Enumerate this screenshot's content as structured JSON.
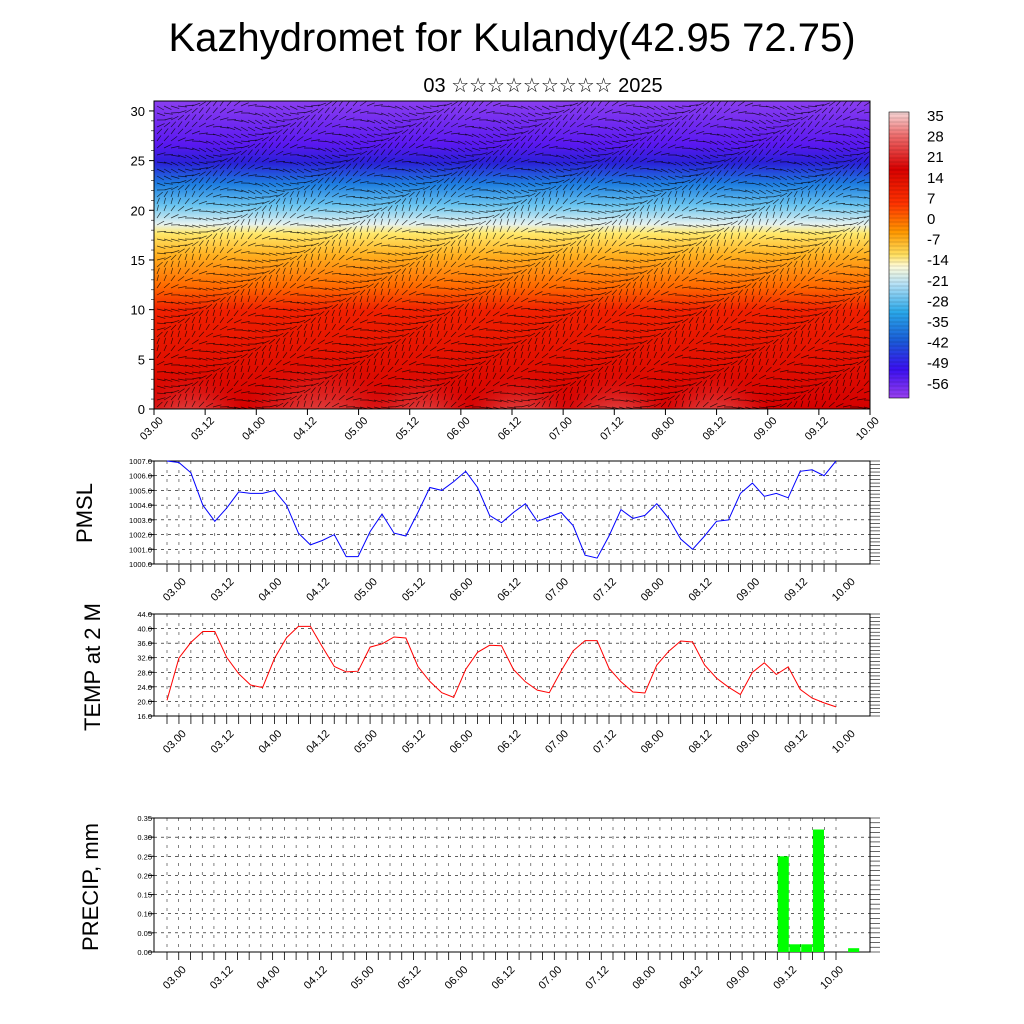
{
  "title": "Kazhydromet for Kulandy(42.95 72.75)",
  "subtitle": "03 ☆☆☆☆☆☆☆☆☆ 2025",
  "time_labels": [
    "03.00",
    "03.12",
    "04.00",
    "04.12",
    "05.00",
    "05.12",
    "06.00",
    "06.12",
    "07.00",
    "07.12",
    "08.00",
    "08.12",
    "09.00",
    "09.12",
    "10.00"
  ],
  "colors": {
    "pmsl": "#0000ff",
    "temp": "#ff0000",
    "precip": "#00ff00"
  },
  "chart_data": [
    {
      "type": "heatmap",
      "description_series": "temperature cross-section with wind barbs",
      "y_ticks": [
        "0",
        "5",
        "10",
        "15",
        "20",
        "25",
        "30"
      ],
      "ylim": [
        0,
        31
      ],
      "colorbar_labels": [
        "35",
        "28",
        "21",
        "14",
        "7",
        "0",
        "-7",
        "-14",
        "-21",
        "-28",
        "-35",
        "-42",
        "-49",
        "-56"
      ]
    },
    {
      "type": "line",
      "ylabel": "PMSL",
      "ylim": [
        1000.0,
        1007.0
      ],
      "y_ticks": [
        "1000.0",
        "1001.0",
        "1002.0",
        "1003.0",
        "1004.0",
        "1005.0",
        "1006.0",
        "1007.0"
      ],
      "values": [
        1007.0,
        1006.9,
        1006.2,
        1004.0,
        1002.9,
        1003.8,
        1004.9,
        1004.8,
        1004.8,
        1005.0,
        1004.0,
        1002.1,
        1001.3,
        1001.6,
        1002.0,
        1000.5,
        1000.5,
        1002.2,
        1003.4,
        1002.1,
        1001.9,
        1003.5,
        1005.2,
        1005.0,
        1005.6,
        1006.3,
        1005.2,
        1003.3,
        1002.8,
        1003.5,
        1004.1,
        1002.9,
        1003.2,
        1003.5,
        1002.6,
        1000.6,
        1000.4,
        1001.9,
        1003.7,
        1003.1,
        1003.3,
        1004.1,
        1003.1,
        1001.7,
        1001.0,
        1001.9,
        1002.9,
        1003.0,
        1004.8,
        1005.5,
        1004.6,
        1004.8,
        1004.5,
        1006.3,
        1006.4,
        1006.0,
        1007.0
      ]
    },
    {
      "type": "line",
      "ylabel": "TEMP at 2 M",
      "ylim": [
        16.0,
        44.0
      ],
      "y_ticks": [
        "16.0",
        "20.0",
        "24.0",
        "28.0",
        "32.0",
        "36.0",
        "40.0",
        "44.0"
      ],
      "values": [
        20.3,
        31.9,
        36.2,
        39.2,
        39.2,
        32.1,
        27.6,
        24.5,
        23.8,
        31.8,
        37.5,
        40.6,
        40.6,
        35.0,
        29.6,
        28.1,
        28.3,
        34.9,
        35.8,
        37.7,
        37.4,
        29.6,
        25.5,
        22.4,
        21.1,
        28.8,
        33.5,
        35.4,
        35.3,
        28.8,
        25.4,
        23.1,
        22.4,
        28.4,
        33.9,
        36.7,
        36.7,
        29.1,
        25.4,
        22.6,
        22.3,
        30.0,
        33.8,
        36.6,
        36.3,
        30.0,
        26.4,
        23.9,
        21.9,
        28.0,
        30.6,
        27.4,
        29.5,
        23.3,
        20.9,
        19.6,
        18.5
      ]
    },
    {
      "type": "bar",
      "ylabel": "PRECIP, mm",
      "ylim": [
        0,
        0.35
      ],
      "y_ticks": [
        "0.00",
        "0.05",
        "0.10",
        "0.15",
        "0.20",
        "0.25",
        "0.30",
        "0.35"
      ],
      "values": [
        0,
        0,
        0,
        0,
        0,
        0,
        0,
        0,
        0,
        0,
        0,
        0,
        0,
        0,
        0,
        0,
        0,
        0,
        0,
        0,
        0,
        0,
        0,
        0,
        0,
        0,
        0,
        0,
        0,
        0,
        0,
        0,
        0,
        0,
        0,
        0,
        0,
        0,
        0,
        0,
        0,
        0,
        0,
        0,
        0,
        0,
        0,
        0,
        0,
        0,
        0,
        0.25,
        0.02,
        0.02,
        0.32,
        0,
        0,
        0.01
      ]
    }
  ]
}
